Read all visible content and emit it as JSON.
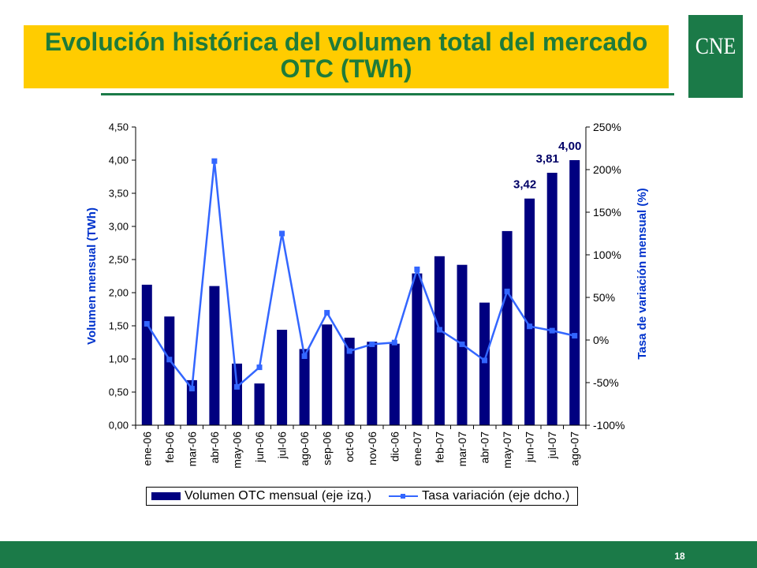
{
  "slide": {
    "title_line1": "Evolución histórica del volumen total del mercado",
    "title_line2": "OTC (TWh)",
    "logo_text": "CNE",
    "page_number": "18"
  },
  "colors": {
    "title_box": "#FFCC00",
    "title_text": "#1E7B3A",
    "brand_green": "#1B7A48",
    "bar": "#000080",
    "line": "#3366FF",
    "axis_title": "#0033CC",
    "data_label": "#000066"
  },
  "chart_data": {
    "type": "bar",
    "categories": [
      "ene-06",
      "feb-06",
      "mar-06",
      "abr-06",
      "may-06",
      "jun-06",
      "jul-06",
      "ago-06",
      "sep-06",
      "oct-06",
      "nov-06",
      "dic-06",
      "ene-07",
      "feb-07",
      "mar-07",
      "abr-07",
      "may-07",
      "jun-07",
      "jul-07",
      "ago-07"
    ],
    "series": [
      {
        "name": "Volumen OTC mensual (eje izq.)",
        "type": "bar",
        "axis": "left",
        "values": [
          2.12,
          1.64,
          0.68,
          2.1,
          0.93,
          0.63,
          1.44,
          1.15,
          1.52,
          1.32,
          1.26,
          1.23,
          2.29,
          2.55,
          2.42,
          1.85,
          2.93,
          3.42,
          3.81,
          4.0
        ]
      },
      {
        "name": "Tasa variación (eje dcho.)",
        "type": "line",
        "axis": "right",
        "values": [
          19,
          -23,
          -57,
          210,
          -55,
          -32,
          125,
          -19,
          32,
          -13,
          -5,
          -3,
          83,
          12,
          -5,
          -24,
          57,
          16,
          11,
          5
        ]
      }
    ],
    "xlabel": "",
    "ylabel": "Volumen mensual (TWh)",
    "y2label": "Tasa de variación mensual (%)",
    "ylim": [
      0,
      4.5
    ],
    "y2lim": [
      -100,
      250
    ],
    "yticks": [
      "0,00",
      "0,50",
      "1,00",
      "1,50",
      "2,00",
      "2,50",
      "3,00",
      "3,50",
      "4,00",
      "4,50"
    ],
    "y2ticks": [
      "-100%",
      "-50%",
      "0%",
      "50%",
      "100%",
      "150%",
      "200%",
      "250%"
    ],
    "data_labels": [
      {
        "category": "jun-07",
        "text": "3,42"
      },
      {
        "category": "jul-07",
        "text": "3,81"
      },
      {
        "category": "ago-07",
        "text": "4,00"
      }
    ],
    "legend": "bottom",
    "grid": false
  }
}
